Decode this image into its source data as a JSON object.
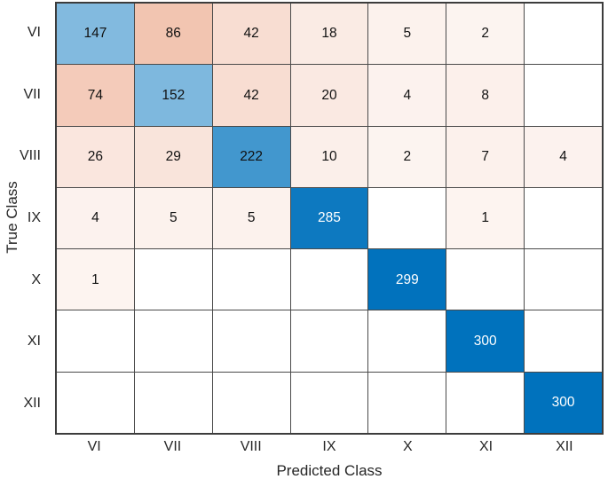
{
  "chart_data": {
    "type": "heatmap",
    "subtype": "confusion-matrix",
    "title": "",
    "xlabel": "Predicted Class",
    "ylabel": "True Class",
    "x_categories": [
      "VI",
      "VII",
      "VIII",
      "IX",
      "X",
      "XI",
      "XII"
    ],
    "y_categories": [
      "VI",
      "VII",
      "VIII",
      "IX",
      "X",
      "XI",
      "XII"
    ],
    "rows": [
      [
        147,
        86,
        42,
        18,
        5,
        2,
        null
      ],
      [
        74,
        152,
        42,
        20,
        4,
        8,
        null
      ],
      [
        26,
        29,
        222,
        10,
        2,
        7,
        4
      ],
      [
        4,
        5,
        5,
        285,
        null,
        1,
        null
      ],
      [
        1,
        null,
        null,
        null,
        299,
        null,
        null
      ],
      [
        null,
        null,
        null,
        null,
        null,
        300,
        null
      ],
      [
        null,
        null,
        null,
        null,
        null,
        null,
        300
      ]
    ],
    "max_diagonal_value": 300,
    "max_off_diagonal_value": 86,
    "diagonal_color": "#0072BD",
    "off_diagonal_color": "#D95319",
    "empty_cell_color": "#FFFFFF",
    "diagonal_text_light_color": "#FFFFFF",
    "cell_text_color": "#111111",
    "grid_line_color": "#4A4A4A",
    "axis_text_color": "#262626",
    "legend": "none",
    "grid": "on"
  }
}
